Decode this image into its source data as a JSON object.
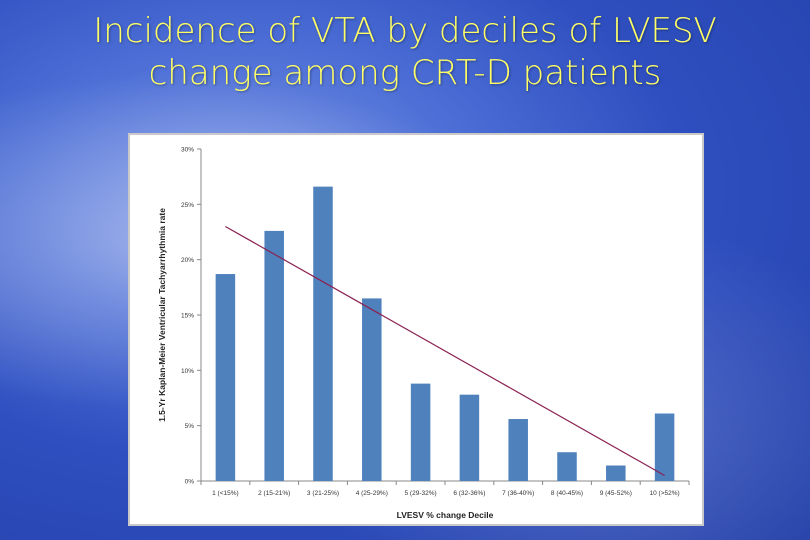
{
  "slide": {
    "title_line1": "Incidence of VTA by deciles of LVESV",
    "title_line2": "change among CRT-D patients"
  },
  "chart_data": {
    "type": "bar",
    "xlabel": "LVESV % change Decile",
    "ylabel": "1.5-Yr Kaplan-Meier Ventricular Tachyarrhythmia rate",
    "ylim": [
      0,
      30
    ],
    "yticks": [
      0,
      5,
      10,
      15,
      20,
      25,
      30
    ],
    "ytick_labels": [
      "0%",
      "5%",
      "10%",
      "15%",
      "20%",
      "25%",
      "30%"
    ],
    "categories": [
      "1 (<15%)",
      "2 (15-21%)",
      "3 (21-25%)",
      "4 (25-29%)",
      "5 (29-32%)",
      "6 (32-36%)",
      "7 (36-40%)",
      "8 (40-45%)",
      "9 (45-52%)",
      "10 (>52%)"
    ],
    "values": [
      18.7,
      22.6,
      26.6,
      16.5,
      8.8,
      7.8,
      5.6,
      2.6,
      1.4,
      6.1
    ],
    "trendline": {
      "start": 23.0,
      "end": 0.5
    },
    "bar_color": "#4f81bd",
    "trend_color": "#8b2252",
    "grid": false,
    "legend": "none"
  }
}
